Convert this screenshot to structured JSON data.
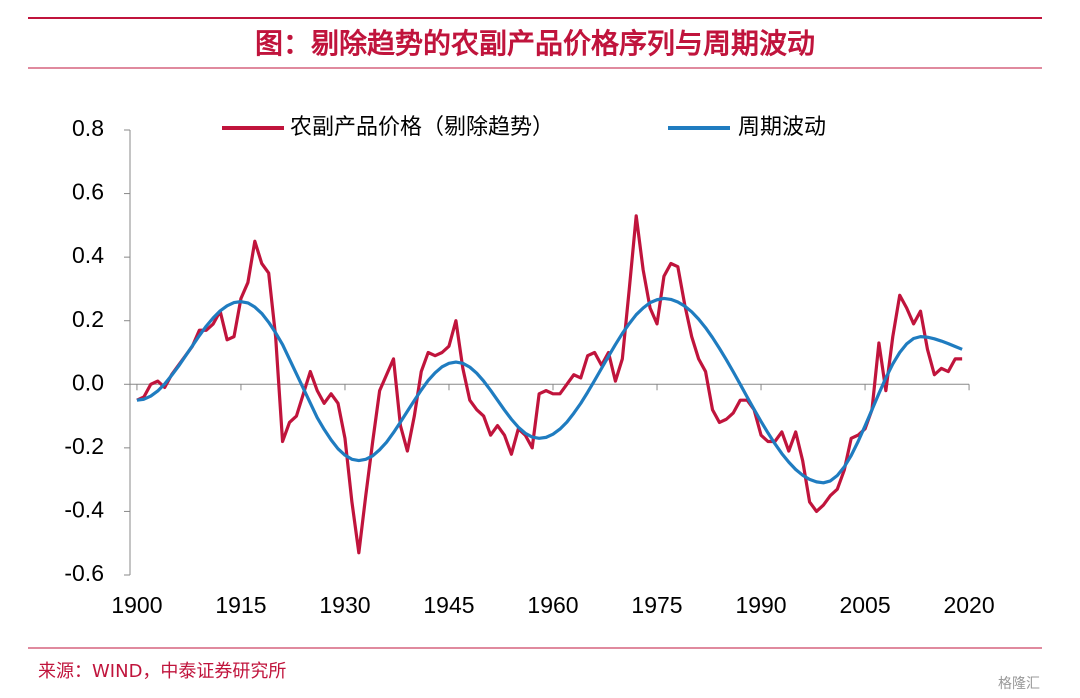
{
  "chart_data": {
    "type": "line",
    "title": "图：剔除趋势的农副产品价格序列与周期波动",
    "source": "来源：WIND，中泰证券研究所",
    "watermark": "格隆汇",
    "x": [
      1900,
      1901,
      1902,
      1903,
      1904,
      1905,
      1906,
      1907,
      1908,
      1909,
      1910,
      1911,
      1912,
      1913,
      1914,
      1915,
      1916,
      1917,
      1918,
      1919,
      1920,
      1921,
      1922,
      1923,
      1924,
      1925,
      1926,
      1927,
      1928,
      1929,
      1930,
      1931,
      1932,
      1933,
      1934,
      1935,
      1936,
      1937,
      1938,
      1939,
      1940,
      1941,
      1942,
      1943,
      1944,
      1945,
      1946,
      1947,
      1948,
      1949,
      1950,
      1951,
      1952,
      1953,
      1954,
      1955,
      1956,
      1957,
      1958,
      1959,
      1960,
      1961,
      1962,
      1963,
      1964,
      1965,
      1966,
      1967,
      1968,
      1969,
      1970,
      1971,
      1972,
      1973,
      1974,
      1975,
      1976,
      1977,
      1978,
      1979,
      1980,
      1981,
      1982,
      1983,
      1984,
      1985,
      1986,
      1987,
      1988,
      1989,
      1990,
      1991,
      1992,
      1993,
      1994,
      1995,
      1996,
      1997,
      1998,
      1999,
      2000,
      2001,
      2002,
      2003,
      2004,
      2005,
      2006,
      2007,
      2008,
      2009,
      2010,
      2011,
      2012,
      2013,
      2014,
      2015,
      2016,
      2017,
      2018,
      2019
    ],
    "series": [
      {
        "name": "农副产品价格（剔除趋势）",
        "color": "#c0143c",
        "values": [
          -0.05,
          -0.04,
          0.0,
          0.01,
          -0.01,
          0.03,
          0.06,
          0.09,
          0.12,
          0.17,
          0.17,
          0.19,
          0.23,
          0.14,
          0.15,
          0.27,
          0.32,
          0.45,
          0.38,
          0.35,
          0.15,
          -0.18,
          -0.12,
          -0.1,
          -0.03,
          0.04,
          -0.02,
          -0.06,
          -0.03,
          -0.06,
          -0.17,
          -0.37,
          -0.53,
          -0.35,
          -0.18,
          -0.02,
          0.03,
          0.08,
          -0.13,
          -0.21,
          -0.1,
          0.04,
          0.1,
          0.09,
          0.1,
          0.12,
          0.2,
          0.05,
          -0.05,
          -0.08,
          -0.1,
          -0.16,
          -0.13,
          -0.16,
          -0.22,
          -0.14,
          -0.16,
          -0.2,
          -0.03,
          -0.02,
          -0.03,
          -0.03,
          0.0,
          0.03,
          0.02,
          0.09,
          0.1,
          0.06,
          0.1,
          0.01,
          0.08,
          0.3,
          0.53,
          0.36,
          0.24,
          0.19,
          0.34,
          0.38,
          0.37,
          0.25,
          0.15,
          0.08,
          0.04,
          -0.08,
          -0.12,
          -0.11,
          -0.09,
          -0.05,
          -0.05,
          -0.08,
          -0.16,
          -0.18,
          -0.18,
          -0.15,
          -0.21,
          -0.15,
          -0.24,
          -0.37,
          -0.4,
          -0.38,
          -0.35,
          -0.33,
          -0.27,
          -0.17,
          -0.16,
          -0.14,
          -0.08,
          0.13,
          -0.02,
          0.15,
          0.28,
          0.24,
          0.19,
          0.23,
          0.11,
          0.03,
          0.05,
          0.04,
          0.08,
          0.08
        ]
      },
      {
        "name": "周期波动",
        "color": "#1f7cc0",
        "values": [
          -0.05,
          -0.047,
          -0.037,
          -0.021,
          0.001,
          0.028,
          0.057,
          0.089,
          0.121,
          0.153,
          0.183,
          0.209,
          0.231,
          0.247,
          0.257,
          0.26,
          0.256,
          0.243,
          0.223,
          0.195,
          0.162,
          0.125,
          0.079,
          0.033,
          -0.013,
          -0.059,
          -0.105,
          -0.142,
          -0.175,
          -0.203,
          -0.223,
          -0.236,
          -0.24,
          -0.236,
          -0.225,
          -0.206,
          -0.182,
          -0.152,
          -0.119,
          -0.085,
          -0.051,
          -0.018,
          0.012,
          0.036,
          0.055,
          0.066,
          0.07,
          0.066,
          0.054,
          0.035,
          0.01,
          -0.019,
          -0.05,
          -0.081,
          -0.11,
          -0.135,
          -0.154,
          -0.166,
          -0.17,
          -0.167,
          -0.157,
          -0.141,
          -0.119,
          -0.091,
          -0.06,
          -0.025,
          0.012,
          0.05,
          0.088,
          0.125,
          0.16,
          0.191,
          0.219,
          0.24,
          0.257,
          0.266,
          0.27,
          0.267,
          0.259,
          0.246,
          0.228,
          0.205,
          0.178,
          0.147,
          0.113,
          0.077,
          0.039,
          0.0,
          -0.04,
          -0.079,
          -0.117,
          -0.153,
          -0.187,
          -0.218,
          -0.245,
          -0.268,
          -0.286,
          -0.299,
          -0.307,
          -0.31,
          -0.304,
          -0.287,
          -0.26,
          -0.224,
          -0.18,
          -0.131,
          -0.08,
          -0.029,
          0.02,
          0.064,
          0.1,
          0.127,
          0.144,
          0.15,
          0.148,
          0.143,
          0.136,
          0.128,
          0.119,
          0.11
        ]
      }
    ],
    "xlim": [
      1899,
      2021
    ],
    "xticks": [
      1900,
      1915,
      1930,
      1945,
      1960,
      1975,
      1990,
      2005,
      2020
    ],
    "ylim": [
      -0.6,
      0.8
    ],
    "yticks": [
      -0.6,
      -0.4,
      -0.2,
      {
        "value": 0,
        "label": "0.0"
      },
      0.2,
      0.4,
      0.6,
      0.8
    ],
    "legend": "top"
  }
}
